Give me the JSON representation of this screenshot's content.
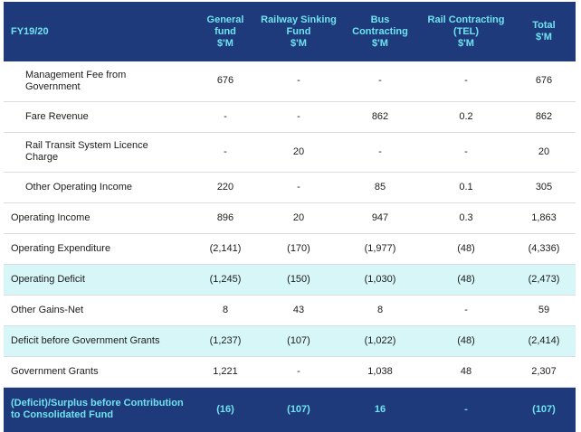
{
  "table": {
    "headers": [
      [
        "FY19/20"
      ],
      [
        "General",
        "fund",
        "$'M"
      ],
      [
        "Railway Sinking",
        "Fund",
        "$'M"
      ],
      [
        "Bus",
        "Contracting",
        "$'M"
      ],
      [
        "Rail Contracting",
        "(TEL)",
        "$'M"
      ],
      [
        "Total",
        "$'M"
      ]
    ],
    "rows": [
      {
        "label": [
          "Management Fee from",
          "Government"
        ],
        "values": [
          "676",
          "-",
          "-",
          "-",
          "676"
        ]
      },
      {
        "label": [
          "Fare Revenue"
        ],
        "values": [
          "-",
          "-",
          "862",
          "0.2",
          "862"
        ]
      },
      {
        "label": [
          "Rail Transit System Licence",
          "Charge"
        ],
        "values": [
          "-",
          "20",
          "-",
          "-",
          "20"
        ]
      },
      {
        "label": [
          "Other Operating Income"
        ],
        "values": [
          "220",
          "-",
          "85",
          "0.1",
          "305"
        ]
      },
      {
        "label": [
          "Operating Income"
        ],
        "values": [
          "896",
          "20",
          "947",
          "0.3",
          "1,863"
        ]
      },
      {
        "label": [
          "Operating Expenditure"
        ],
        "values": [
          "(2,141)",
          "(170)",
          "(1,977)",
          "(48)",
          "(4,336)"
        ]
      },
      {
        "label": [
          "Operating Deficit"
        ],
        "values": [
          "(1,245)",
          "(150)",
          "(1,030)",
          "(48)",
          "(2,473)"
        ]
      },
      {
        "label": [
          "Other Gains-Net"
        ],
        "values": [
          "8",
          "43",
          "8",
          "-",
          "59"
        ]
      },
      {
        "label": [
          "Deficit before Government Grants"
        ],
        "values": [
          "(1,237)",
          "(107)",
          "(1,022)",
          "(48)",
          "(2,414)"
        ]
      },
      {
        "label": [
          "Government Grants"
        ],
        "values": [
          "1,221",
          "-",
          "1,038",
          "48",
          "2,307"
        ]
      },
      {
        "label": [
          "(Deficit)/Surplus before Contribution",
          "to Consolidated Fund"
        ],
        "values": [
          "(16)",
          "(107)",
          "16",
          "-",
          "(107)"
        ]
      }
    ]
  },
  "colors": {
    "header_bg": "#1f3a7a",
    "header_text": "#6fe3ef",
    "highlight_row_bg": "#d6f6f8",
    "row_divider": "#d9dde3"
  }
}
